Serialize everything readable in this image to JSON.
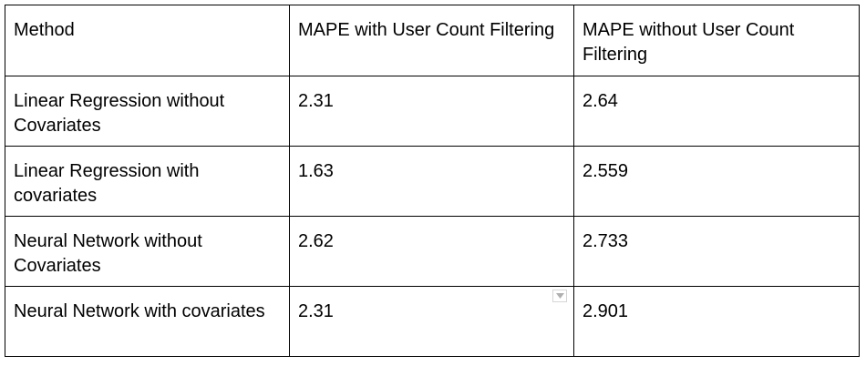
{
  "table": {
    "headers": [
      "Method",
      "MAPE with User Count Filtering",
      "MAPE without User Count Filtering"
    ],
    "rows": [
      [
        "Linear Regression without Covariates",
        "2.31",
        "2.64"
      ],
      [
        "Linear Regression with covariates",
        "1.63",
        "2.559"
      ],
      [
        "Neural Network without Covariates",
        "2.62",
        "2.733"
      ],
      [
        "Neural Network with covariates",
        "2.31",
        "2.901"
      ]
    ]
  },
  "icons": {
    "cell_dropdown": "chevron-down-icon"
  }
}
